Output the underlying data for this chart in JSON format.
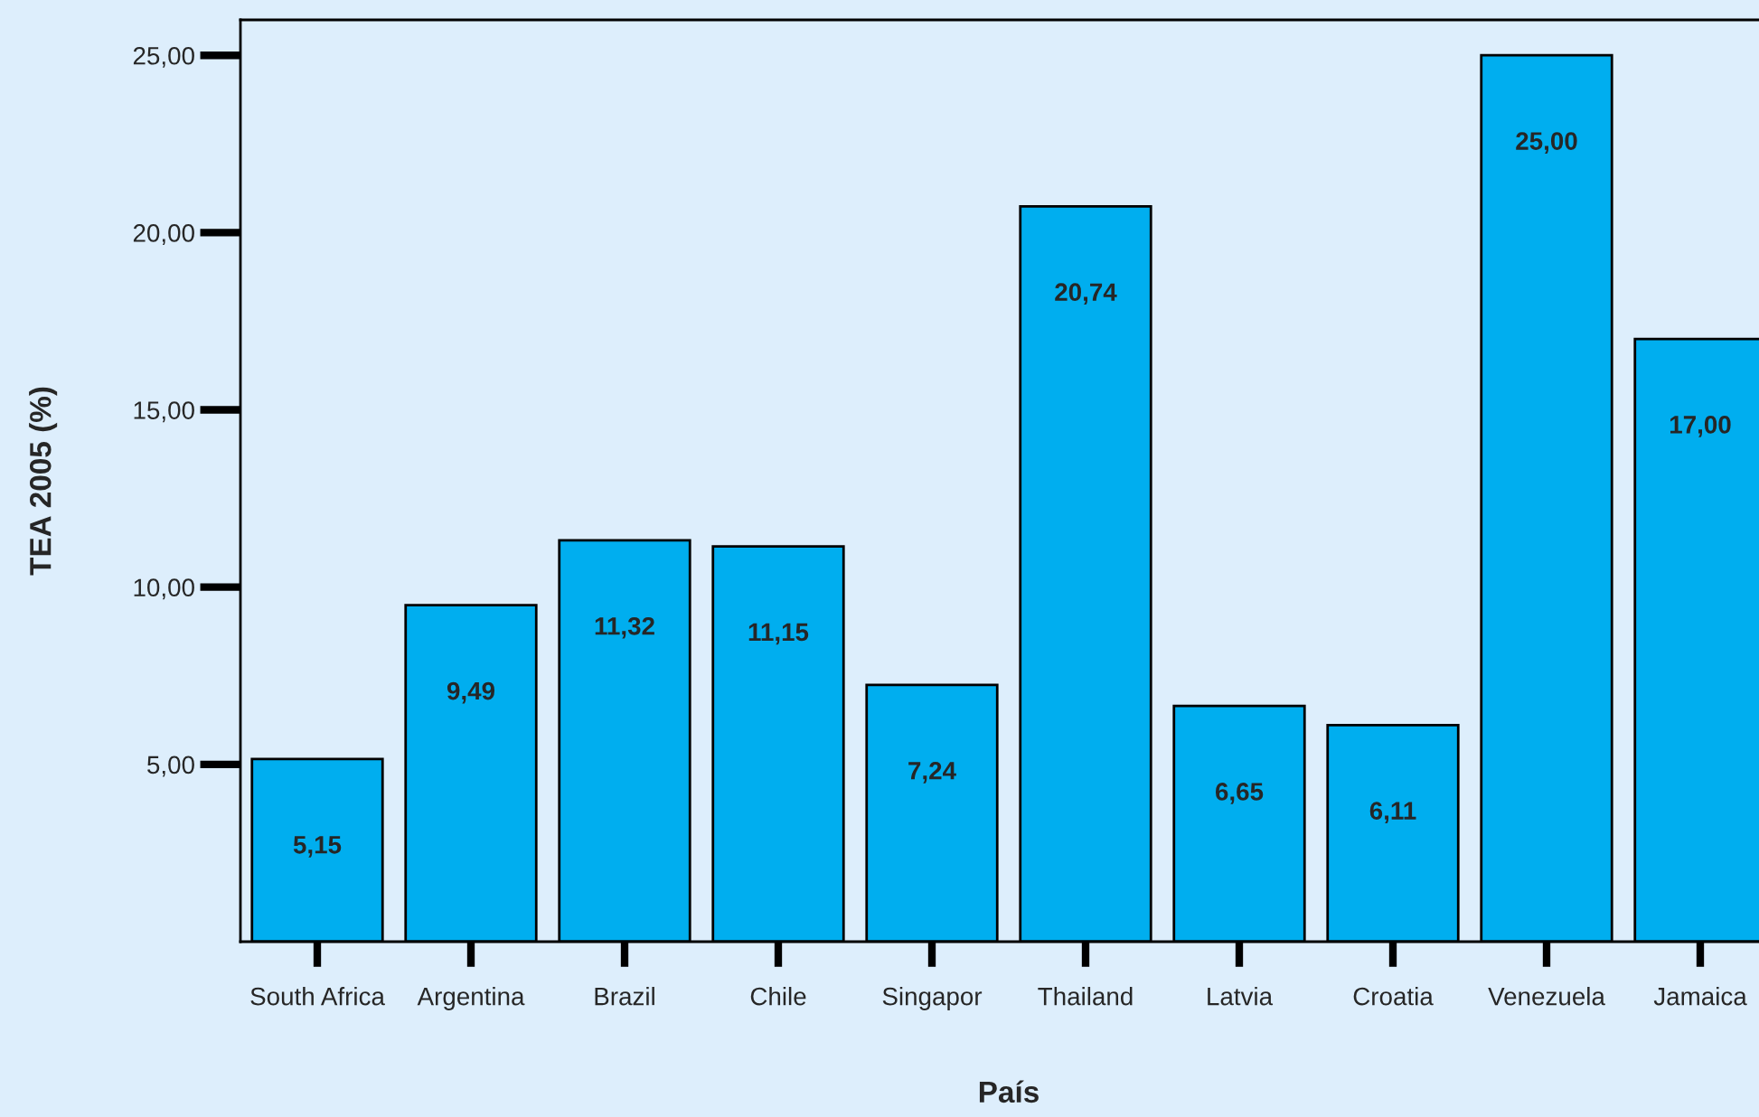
{
  "chart_data": {
    "type": "bar",
    "xlabel": "País",
    "ylabel": "TEA 2005 (%)",
    "categories": [
      "South Africa",
      "Argentina",
      "Brazil",
      "Chile",
      "Singapor",
      "Thailand",
      "Latvia",
      "Croatia",
      "Venezuela",
      "Jamaica"
    ],
    "values": [
      5.15,
      9.49,
      11.32,
      11.15,
      7.24,
      20.74,
      6.65,
      6.11,
      25.0,
      17.0
    ],
    "value_labels": [
      "5,15",
      "9,49",
      "11,32",
      "11,15",
      "7,24",
      "20,74",
      "6,65",
      "6,11",
      "25,00",
      "17,00"
    ],
    "color": "#00aeef",
    "ylim": [
      0,
      26
    ],
    "yticks": [
      {
        "value": 5,
        "label": "5,00"
      },
      {
        "value": 10,
        "label": "10,00"
      },
      {
        "value": 15,
        "label": "15,00"
      },
      {
        "value": 20,
        "label": "20,00"
      },
      {
        "value": 25,
        "label": "25,00"
      }
    ],
    "grid": false,
    "legend": false
  }
}
